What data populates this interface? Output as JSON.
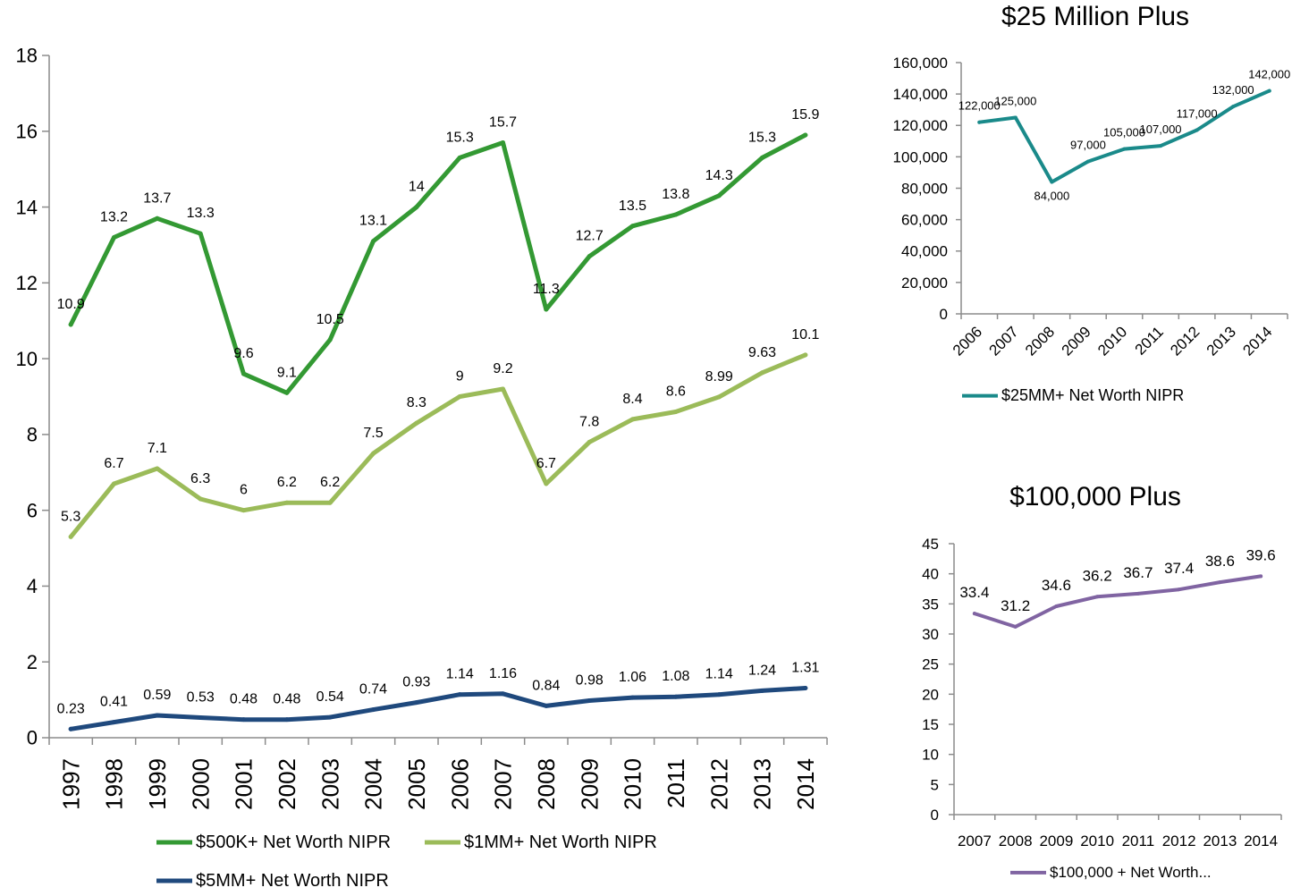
{
  "chart_data": [
    {
      "type": "line",
      "title": "",
      "xlabel": "",
      "ylabel": "",
      "ylim": [
        0,
        18
      ],
      "yticks": [
        0,
        2,
        4,
        6,
        8,
        10,
        12,
        14,
        16,
        18
      ],
      "grid": false,
      "legend": "bottom",
      "categories": [
        "1997",
        "1998",
        "1999",
        "2000",
        "2001",
        "2002",
        "2003",
        "2004",
        "2005",
        "2006",
        "2007",
        "2008",
        "2009",
        "2010",
        "2011",
        "2012",
        "2013",
        "2014"
      ],
      "series": [
        {
          "name": "$500K+ Net Worth NIPR",
          "color": "#339933",
          "values": [
            10.9,
            13.2,
            13.7,
            13.3,
            9.6,
            9.1,
            10.5,
            13.1,
            14,
            15.3,
            15.7,
            11.3,
            12.7,
            13.5,
            13.8,
            14.3,
            15.3,
            15.9
          ],
          "labels": [
            "10.9",
            "13.2",
            "13.7",
            "13.3",
            "9.6",
            "9.1",
            "10.5",
            "13.1",
            "14",
            "15.3",
            "15.7",
            "11.3",
            "12.7",
            "13.5",
            "13.8",
            "14.3",
            "15.3",
            "15.9"
          ]
        },
        {
          "name": "$1MM+ Net Worth NIPR",
          "color": "#9bbb59",
          "values": [
            5.3,
            6.7,
            7.1,
            6.3,
            6,
            6.2,
            6.2,
            7.5,
            8.3,
            9,
            9.2,
            6.7,
            7.8,
            8.4,
            8.6,
            8.99,
            9.63,
            10.1
          ],
          "labels": [
            "5.3",
            "6.7",
            "7.1",
            "6.3",
            "6",
            "6.2",
            "6.2",
            "7.5",
            "8.3",
            "9",
            "9.2",
            "6.7",
            "7.8",
            "8.4",
            "8.6",
            "8.99",
            "9.63",
            "10.1"
          ]
        },
        {
          "name": "$5MM+ Net Worth NIPR",
          "color": "#1f497d",
          "values": [
            0.23,
            0.41,
            0.59,
            0.53,
            0.48,
            0.48,
            0.54,
            0.74,
            0.93,
            1.14,
            1.16,
            0.84,
            0.98,
            1.06,
            1.08,
            1.14,
            1.24,
            1.31
          ],
          "labels": [
            "0.23",
            "0.41",
            "0.59",
            "0.53",
            "0.48",
            "0.48",
            "0.54",
            "0.74",
            "0.93",
            "1.14",
            "1.16",
            "0.84",
            "0.98",
            "1.06",
            "1.08",
            "1.14",
            "1.24",
            "1.31"
          ]
        }
      ]
    },
    {
      "type": "line",
      "title": "$25 Million Plus",
      "xlabel": "",
      "ylabel": "",
      "ylim": [
        0,
        160000
      ],
      "yticks": [
        0,
        20000,
        40000,
        60000,
        80000,
        100000,
        120000,
        140000,
        160000
      ],
      "ytick_labels": [
        "0",
        "20,000",
        "40,000",
        "60,000",
        "80,000",
        "100,000",
        "120,000",
        "140,000",
        "160,000"
      ],
      "grid": false,
      "legend": "bottom",
      "categories": [
        "2006",
        "2007",
        "2008",
        "2009",
        "2010",
        "2011",
        "2012",
        "2013",
        "2014"
      ],
      "series": [
        {
          "name": "$25MM+ Net Worth NIPR",
          "color": "#1a8a8a",
          "values": [
            122000,
            125000,
            84000,
            97000,
            105000,
            107000,
            117000,
            132000,
            142000
          ],
          "labels": [
            "122,000",
            "125,000",
            "84,000",
            "97,000",
            "105,000",
            "107,000",
            "117,000",
            "132,000",
            "142,000"
          ]
        }
      ]
    },
    {
      "type": "line",
      "title": "$100,000 Plus",
      "xlabel": "",
      "ylabel": "",
      "ylim": [
        0,
        45
      ],
      "yticks": [
        0,
        5,
        10,
        15,
        20,
        25,
        30,
        35,
        40,
        45
      ],
      "grid": false,
      "legend": "bottom",
      "categories": [
        "2007",
        "2008",
        "2009",
        "2010",
        "2011",
        "2012",
        "2013",
        "2014"
      ],
      "series": [
        {
          "name": "$100,000 + Net Worth...",
          "color": "#8064a2",
          "values": [
            33.4,
            31.2,
            34.6,
            36.2,
            36.7,
            37.4,
            38.6,
            39.6
          ],
          "labels": [
            "33.4",
            "31.2",
            "34.6",
            "36.2",
            "36.7",
            "37.4",
            "38.6",
            "39.6"
          ]
        }
      ]
    }
  ]
}
